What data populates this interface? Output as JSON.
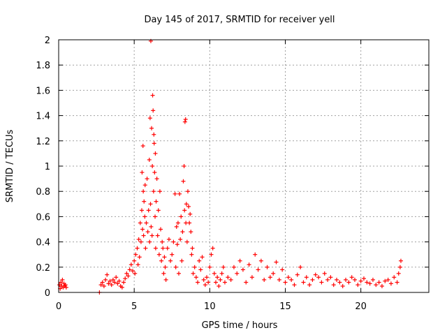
{
  "chart_data": {
    "type": "scatter",
    "title": "Day 145 of 2017, SRMTID for receiver yell",
    "xlabel": "GPS time / hours",
    "ylabel": "SRMTID / TECUs",
    "xlim": [
      0,
      24.5
    ],
    "ylim": [
      0,
      2
    ],
    "xticks": [
      0,
      5,
      10,
      15,
      20
    ],
    "xtick_labels": [
      "0",
      "5",
      "10",
      "15",
      "20"
    ],
    "yticks": [
      0,
      0.2,
      0.4,
      0.6,
      0.8,
      1,
      1.2,
      1.4,
      1.6,
      1.8,
      2
    ],
    "ytick_labels": [
      "0",
      "0.2",
      "0.4",
      "0.6",
      "0.8",
      "1",
      "1.2",
      "1.4",
      "1.6",
      "1.8",
      "2"
    ],
    "grid": true,
    "marker": "+",
    "color": "#ff0000",
    "series": [
      {
        "name": "SRMTID",
        "points": [
          [
            0.05,
            0.06
          ],
          [
            0.1,
            0.03
          ],
          [
            0.15,
            0.08
          ],
          [
            0.2,
            0.05
          ],
          [
            0.25,
            0.1
          ],
          [
            0.3,
            0.04
          ],
          [
            0.35,
            0.07
          ],
          [
            0.4,
            0.05
          ],
          [
            0.45,
            0.06
          ],
          [
            0.5,
            0.04
          ],
          [
            2.7,
            0.0
          ],
          [
            2.8,
            0.06
          ],
          [
            2.9,
            0.08
          ],
          [
            3.0,
            0.05
          ],
          [
            3.1,
            0.1
          ],
          [
            3.2,
            0.14
          ],
          [
            3.3,
            0.07
          ],
          [
            3.4,
            0.09
          ],
          [
            3.5,
            0.06
          ],
          [
            3.6,
            0.1
          ],
          [
            3.7,
            0.08
          ],
          [
            3.8,
            0.12
          ],
          [
            3.9,
            0.07
          ],
          [
            4.0,
            0.09
          ],
          [
            4.1,
            0.05
          ],
          [
            4.2,
            0.04
          ],
          [
            4.3,
            0.08
          ],
          [
            4.4,
            0.11
          ],
          [
            4.5,
            0.15
          ],
          [
            4.6,
            0.13
          ],
          [
            4.7,
            0.18
          ],
          [
            4.8,
            0.22
          ],
          [
            4.9,
            0.17
          ],
          [
            5.0,
            0.25
          ],
          [
            5.05,
            0.15
          ],
          [
            5.1,
            0.3
          ],
          [
            5.2,
            0.35
          ],
          [
            5.25,
            0.22
          ],
          [
            5.3,
            0.42
          ],
          [
            5.35,
            0.28
          ],
          [
            5.4,
            0.55
          ],
          [
            5.45,
            0.4
          ],
          [
            5.5,
            0.65
          ],
          [
            5.52,
            0.95
          ],
          [
            5.55,
            0.5
          ],
          [
            5.58,
            1.16
          ],
          [
            5.6,
            0.8
          ],
          [
            5.62,
            0.45
          ],
          [
            5.65,
            0.72
          ],
          [
            5.7,
            0.6
          ],
          [
            5.72,
            0.85
          ],
          [
            5.75,
            0.35
          ],
          [
            5.8,
            0.55
          ],
          [
            5.85,
            0.9
          ],
          [
            5.9,
            0.48
          ],
          [
            5.95,
            0.65
          ],
          [
            6.0,
            1.05
          ],
          [
            6.02,
            0.4
          ],
          [
            6.05,
            1.38
          ],
          [
            6.08,
            0.7
          ],
          [
            6.1,
            1.99
          ],
          [
            6.12,
            0.52
          ],
          [
            6.15,
            1.3
          ],
          [
            6.18,
            0.45
          ],
          [
            6.2,
            1.0
          ],
          [
            6.22,
            1.56
          ],
          [
            6.25,
            1.44
          ],
          [
            6.28,
            0.8
          ],
          [
            6.3,
            1.25
          ],
          [
            6.32,
            1.18
          ],
          [
            6.35,
            0.95
          ],
          [
            6.38,
            0.6
          ],
          [
            6.4,
            1.1
          ],
          [
            6.42,
            0.35
          ],
          [
            6.45,
            0.72
          ],
          [
            6.5,
            0.9
          ],
          [
            6.55,
            0.45
          ],
          [
            6.6,
            0.65
          ],
          [
            6.65,
            0.3
          ],
          [
            6.7,
            0.8
          ],
          [
            6.75,
            0.5
          ],
          [
            6.8,
            0.25
          ],
          [
            6.85,
            0.4
          ],
          [
            6.9,
            0.35
          ],
          [
            6.95,
            0.15
          ],
          [
            7.0,
            0.28
          ],
          [
            7.05,
            0.2
          ],
          [
            7.1,
            0.1
          ],
          [
            7.2,
            0.35
          ],
          [
            7.3,
            0.42
          ],
          [
            7.4,
            0.25
          ],
          [
            7.5,
            0.3
          ],
          [
            7.6,
            0.4
          ],
          [
            7.7,
            0.78
          ],
          [
            7.75,
            0.2
          ],
          [
            7.8,
            0.52
          ],
          [
            7.85,
            0.38
          ],
          [
            7.9,
            0.55
          ],
          [
            7.95,
            0.15
          ],
          [
            8.0,
            0.78
          ],
          [
            8.05,
            0.42
          ],
          [
            8.1,
            0.6
          ],
          [
            8.15,
            0.25
          ],
          [
            8.2,
            0.48
          ],
          [
            8.25,
            0.88
          ],
          [
            8.3,
            1.0
          ],
          [
            8.33,
            0.65
          ],
          [
            8.36,
            1.35
          ],
          [
            8.4,
            1.37
          ],
          [
            8.42,
            0.55
          ],
          [
            8.45,
            0.7
          ],
          [
            8.5,
            0.4
          ],
          [
            8.55,
            0.8
          ],
          [
            8.6,
            0.68
          ],
          [
            8.65,
            0.55
          ],
          [
            8.7,
            0.62
          ],
          [
            8.75,
            0.48
          ],
          [
            8.8,
            0.3
          ],
          [
            8.85,
            0.35
          ],
          [
            8.9,
            0.15
          ],
          [
            9.0,
            0.2
          ],
          [
            9.1,
            0.12
          ],
          [
            9.2,
            0.08
          ],
          [
            9.3,
            0.25
          ],
          [
            9.4,
            0.18
          ],
          [
            9.5,
            0.28
          ],
          [
            9.6,
            0.1
          ],
          [
            9.7,
            0.06
          ],
          [
            9.8,
            0.12
          ],
          [
            9.9,
            0.08
          ],
          [
            10.0,
            0.2
          ],
          [
            10.1,
            0.3
          ],
          [
            10.2,
            0.35
          ],
          [
            10.3,
            0.15
          ],
          [
            10.4,
            0.08
          ],
          [
            10.5,
            0.12
          ],
          [
            10.6,
            0.05
          ],
          [
            10.7,
            0.1
          ],
          [
            10.8,
            0.15
          ],
          [
            10.9,
            0.2
          ],
          [
            11.0,
            0.08
          ],
          [
            11.2,
            0.12
          ],
          [
            11.4,
            0.1
          ],
          [
            11.6,
            0.2
          ],
          [
            11.8,
            0.15
          ],
          [
            12.0,
            0.25
          ],
          [
            12.2,
            0.18
          ],
          [
            12.4,
            0.08
          ],
          [
            12.6,
            0.22
          ],
          [
            12.8,
            0.12
          ],
          [
            13.0,
            0.3
          ],
          [
            13.2,
            0.18
          ],
          [
            13.4,
            0.25
          ],
          [
            13.6,
            0.1
          ],
          [
            13.8,
            0.2
          ],
          [
            14.0,
            0.12
          ],
          [
            14.2,
            0.15
          ],
          [
            14.4,
            0.24
          ],
          [
            14.6,
            0.1
          ],
          [
            14.8,
            0.18
          ],
          [
            15.0,
            0.08
          ],
          [
            15.2,
            0.12
          ],
          [
            15.4,
            0.1
          ],
          [
            15.6,
            0.06
          ],
          [
            15.8,
            0.14
          ],
          [
            16.0,
            0.2
          ],
          [
            16.2,
            0.08
          ],
          [
            16.4,
            0.12
          ],
          [
            16.6,
            0.06
          ],
          [
            16.8,
            0.1
          ],
          [
            17.0,
            0.14
          ],
          [
            17.2,
            0.12
          ],
          [
            17.4,
            0.08
          ],
          [
            17.6,
            0.15
          ],
          [
            17.8,
            0.1
          ],
          [
            18.0,
            0.12
          ],
          [
            18.2,
            0.06
          ],
          [
            18.4,
            0.1
          ],
          [
            18.6,
            0.08
          ],
          [
            18.8,
            0.05
          ],
          [
            19.0,
            0.1
          ],
          [
            19.2,
            0.08
          ],
          [
            19.4,
            0.12
          ],
          [
            19.6,
            0.1
          ],
          [
            19.8,
            0.06
          ],
          [
            20.0,
            0.09
          ],
          [
            20.2,
            0.11
          ],
          [
            20.4,
            0.08
          ],
          [
            20.6,
            0.07
          ],
          [
            20.8,
            0.1
          ],
          [
            21.0,
            0.06
          ],
          [
            21.2,
            0.08
          ],
          [
            21.4,
            0.05
          ],
          [
            21.6,
            0.09
          ],
          [
            21.8,
            0.1
          ],
          [
            22.0,
            0.07
          ],
          [
            22.2,
            0.12
          ],
          [
            22.4,
            0.08
          ],
          [
            22.5,
            0.15
          ],
          [
            22.6,
            0.2
          ],
          [
            22.65,
            0.25
          ]
        ]
      }
    ]
  }
}
